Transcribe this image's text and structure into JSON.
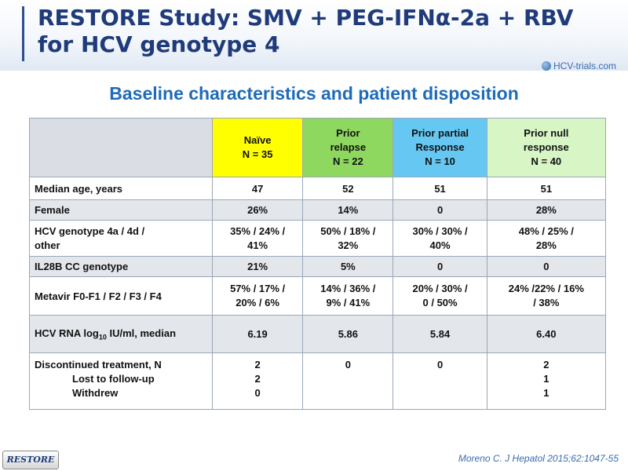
{
  "title": {
    "line1": "RESTORE Study: SMV + PEG-IFNα-2a + RBV",
    "line2": "for HCV genotype 4"
  },
  "logo": {
    "text": "HCV-trials.com"
  },
  "subtitle": "Baseline characteristics and patient disposition",
  "table": {
    "columns": [
      {
        "lines": [
          "Naïve",
          "N = 35"
        ],
        "color": "#ffff00"
      },
      {
        "lines": [
          "Prior",
          "relapse",
          "N = 22"
        ],
        "color": "#8fd860"
      },
      {
        "lines": [
          "Prior partial",
          "Response",
          "N = 10"
        ],
        "color": "#66c8f2"
      },
      {
        "lines": [
          "Prior null",
          "response",
          "N = 40"
        ],
        "color": "#d8f5c6"
      }
    ],
    "rows": [
      {
        "label": "Median age, years",
        "values": [
          "47",
          "52",
          "51",
          "51"
        ]
      },
      {
        "label": "Female",
        "values": [
          "26%",
          "14%",
          "0",
          "28%"
        ]
      },
      {
        "label_lines": [
          "HCV genotype 4a / 4d /",
          "other"
        ],
        "values": [
          [
            "35% / 24% /",
            "41%"
          ],
          [
            "50% / 18% /",
            "32%"
          ],
          [
            "30% / 30% /",
            "40%"
          ],
          [
            "48% / 25% /",
            "28%"
          ]
        ]
      },
      {
        "label": "IL28B CC genotype",
        "values": [
          "21%",
          "5%",
          "0",
          "0"
        ]
      },
      {
        "label": "Metavir F0-F1 / F2 / F3 / F4",
        "values": [
          [
            "57% / 17% /",
            "20% / 6%"
          ],
          [
            "14% / 36% /",
            "9% / 41%"
          ],
          [
            "20% / 30% /",
            "0 / 50%"
          ],
          [
            "24% /22% / 16%",
            "/ 38%"
          ]
        ]
      },
      {
        "label_main": "HCV RNA log",
        "label_sub": "10",
        "label_tail": " IU/ml, median",
        "values": [
          "6.19",
          "5.86",
          "5.84",
          "6.40"
        ]
      },
      {
        "label": "Discontinued treatment, N",
        "sub_labels": [
          "Lost to follow-up",
          "Withdrew"
        ],
        "values": [
          [
            "2",
            "2",
            "0"
          ],
          [
            "0"
          ],
          [
            "0"
          ],
          [
            "2",
            "1",
            "1"
          ]
        ]
      }
    ]
  },
  "footer": {
    "button": "RESTORE",
    "reference": "Moreno C. J Hepatol 2015;62:1047-55"
  }
}
